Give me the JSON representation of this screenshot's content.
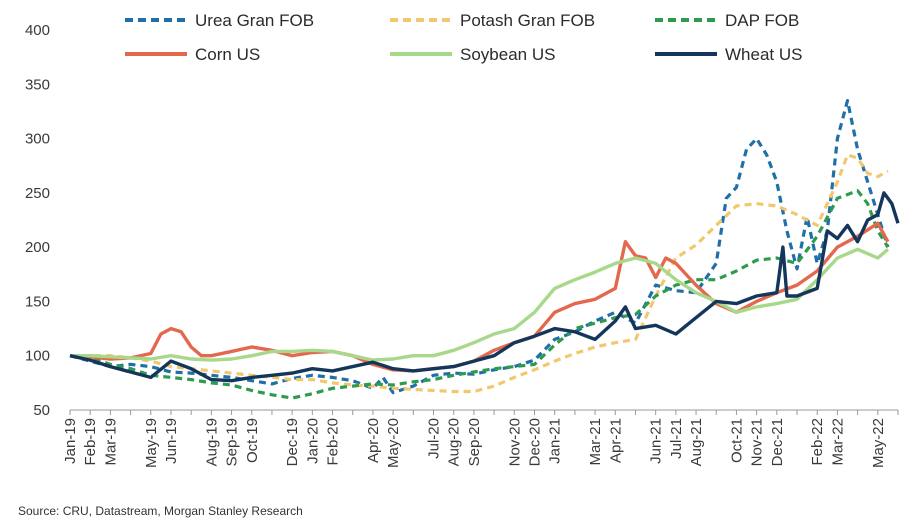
{
  "source_text": "Source: CRU, Datastream, Morgan Stanley Research",
  "chart_data": {
    "type": "line",
    "ylim": [
      50,
      400
    ],
    "yticks": [
      50,
      100,
      150,
      200,
      250,
      300,
      350,
      400
    ],
    "x_start": "2019-01",
    "x_end": "2022-06",
    "tick_labels": [
      "Jan-19",
      "Feb-19",
      "Mar-19",
      "May-19",
      "Jun-19",
      "Aug-19",
      "Sep-19",
      "Oct-19",
      "Dec-19",
      "Jan-20",
      "Feb-20",
      "Apr-20",
      "May-20",
      "Jul-20",
      "Aug-20",
      "Sep-20",
      "Nov-20",
      "Dec-20",
      "Jan-21",
      "Mar-21",
      "Apr-21",
      "Jun-21",
      "Jul-21",
      "Aug-21",
      "Oct-21",
      "Nov-21",
      "Dec-21",
      "Feb-22",
      "Mar-22",
      "May-22"
    ],
    "tick_months": [
      0,
      1,
      2,
      4,
      5,
      7,
      8,
      9,
      11,
      12,
      13,
      15,
      16,
      18,
      19,
      20,
      22,
      23,
      24,
      26,
      27,
      29,
      30,
      31,
      33,
      34,
      35,
      37,
      38,
      40
    ],
    "series": [
      {
        "name": "Urea Gran FOB",
        "color": "#1f6fa8",
        "style": "dash",
        "points": [
          [
            0,
            100
          ],
          [
            1,
            95
          ],
          [
            2,
            90
          ],
          [
            3,
            92
          ],
          [
            4,
            90
          ],
          [
            5,
            85
          ],
          [
            6,
            84
          ],
          [
            7,
            82
          ],
          [
            8,
            80
          ],
          [
            9,
            77
          ],
          [
            10,
            74
          ],
          [
            11,
            79
          ],
          [
            12,
            82
          ],
          [
            13,
            80
          ],
          [
            14,
            77
          ],
          [
            15,
            70
          ],
          [
            15.5,
            80
          ],
          [
            16,
            66
          ],
          [
            17,
            72
          ],
          [
            18,
            82
          ],
          [
            19,
            84
          ],
          [
            20,
            83
          ],
          [
            21,
            87
          ],
          [
            22,
            90
          ],
          [
            23,
            96
          ],
          [
            24,
            115
          ],
          [
            25,
            122
          ],
          [
            26,
            132
          ],
          [
            27,
            140
          ],
          [
            28,
            130
          ],
          [
            29,
            165
          ],
          [
            30,
            160
          ],
          [
            31,
            158
          ],
          [
            32,
            185
          ],
          [
            32.5,
            245
          ],
          [
            33,
            255
          ],
          [
            33.5,
            290
          ],
          [
            34,
            300
          ],
          [
            34.5,
            285
          ],
          [
            35,
            260
          ],
          [
            35.5,
            215
          ],
          [
            36,
            180
          ],
          [
            36.5,
            228
          ],
          [
            37,
            185
          ],
          [
            37.5,
            215
          ],
          [
            38,
            300
          ],
          [
            38.5,
            335
          ],
          [
            39,
            290
          ],
          [
            39.5,
            260
          ],
          [
            40,
            230
          ],
          [
            40.5,
            200
          ]
        ]
      },
      {
        "name": "Potash Gran FOB",
        "color": "#f2c86e",
        "style": "dash",
        "points": [
          [
            0,
            100
          ],
          [
            1,
            100
          ],
          [
            2,
            100
          ],
          [
            3,
            98
          ],
          [
            4,
            95
          ],
          [
            5,
            90
          ],
          [
            6,
            88
          ],
          [
            7,
            86
          ],
          [
            8,
            84
          ],
          [
            9,
            82
          ],
          [
            10,
            80
          ],
          [
            11,
            78
          ],
          [
            12,
            78
          ],
          [
            13,
            75
          ],
          [
            14,
            73
          ],
          [
            15,
            72
          ],
          [
            16,
            70
          ],
          [
            17,
            69
          ],
          [
            18,
            68
          ],
          [
            19,
            67
          ],
          [
            20,
            67
          ],
          [
            21,
            72
          ],
          [
            22,
            80
          ],
          [
            23,
            87
          ],
          [
            24,
            95
          ],
          [
            25,
            102
          ],
          [
            26,
            108
          ],
          [
            27,
            112
          ],
          [
            28,
            115
          ],
          [
            29,
            155
          ],
          [
            30,
            190
          ],
          [
            31,
            202
          ],
          [
            32,
            220
          ],
          [
            33,
            238
          ],
          [
            34,
            240
          ],
          [
            35,
            238
          ],
          [
            36,
            230
          ],
          [
            37,
            220
          ],
          [
            38,
            260
          ],
          [
            38.5,
            285
          ],
          [
            39,
            282
          ],
          [
            39.5,
            268
          ],
          [
            40,
            265
          ],
          [
            40.5,
            270
          ]
        ]
      },
      {
        "name": "DAP FOB",
        "color": "#2e9a4e",
        "style": "dash",
        "points": [
          [
            0,
            100
          ],
          [
            1,
            98
          ],
          [
            2,
            92
          ],
          [
            3,
            88
          ],
          [
            4,
            82
          ],
          [
            5,
            80
          ],
          [
            6,
            78
          ],
          [
            7,
            75
          ],
          [
            8,
            73
          ],
          [
            9,
            68
          ],
          [
            10,
            64
          ],
          [
            11,
            61
          ],
          [
            12,
            65
          ],
          [
            13,
            70
          ],
          [
            14,
            72
          ],
          [
            15,
            74
          ],
          [
            16,
            73
          ],
          [
            17,
            76
          ],
          [
            18,
            78
          ],
          [
            19,
            82
          ],
          [
            20,
            85
          ],
          [
            21,
            88
          ],
          [
            22,
            90
          ],
          [
            23,
            92
          ],
          [
            24,
            110
          ],
          [
            25,
            125
          ],
          [
            26,
            130
          ],
          [
            27,
            135
          ],
          [
            28,
            138
          ],
          [
            29,
            155
          ],
          [
            30,
            165
          ],
          [
            31,
            170
          ],
          [
            32,
            170
          ],
          [
            33,
            178
          ],
          [
            34,
            188
          ],
          [
            35,
            190
          ],
          [
            36,
            185
          ],
          [
            37,
            210
          ],
          [
            38,
            245
          ],
          [
            39,
            252
          ],
          [
            39.5,
            240
          ],
          [
            40,
            215
          ],
          [
            40.5,
            200
          ]
        ]
      },
      {
        "name": "Corn US",
        "color": "#e4684e",
        "style": "solid",
        "points": [
          [
            0,
            100
          ],
          [
            1,
            99
          ],
          [
            2,
            97
          ],
          [
            3,
            98
          ],
          [
            4,
            102
          ],
          [
            4.5,
            120
          ],
          [
            5,
            125
          ],
          [
            5.5,
            122
          ],
          [
            6,
            108
          ],
          [
            6.5,
            100
          ],
          [
            7,
            100
          ],
          [
            8,
            104
          ],
          [
            9,
            108
          ],
          [
            10,
            105
          ],
          [
            11,
            100
          ],
          [
            12,
            103
          ],
          [
            13,
            104
          ],
          [
            14,
            100
          ],
          [
            15,
            92
          ],
          [
            16,
            87
          ],
          [
            17,
            86
          ],
          [
            18,
            88
          ],
          [
            19,
            90
          ],
          [
            20,
            95
          ],
          [
            21,
            105
          ],
          [
            22,
            112
          ],
          [
            23,
            118
          ],
          [
            24,
            140
          ],
          [
            25,
            148
          ],
          [
            26,
            152
          ],
          [
            27,
            162
          ],
          [
            27.5,
            205
          ],
          [
            28,
            192
          ],
          [
            28.5,
            190
          ],
          [
            29,
            172
          ],
          [
            29.5,
            190
          ],
          [
            30,
            185
          ],
          [
            31,
            165
          ],
          [
            32,
            148
          ],
          [
            33,
            140
          ],
          [
            34,
            150
          ],
          [
            35,
            158
          ],
          [
            36,
            165
          ],
          [
            37,
            178
          ],
          [
            38,
            200
          ],
          [
            39,
            210
          ],
          [
            40,
            222
          ],
          [
            40.5,
            205
          ]
        ]
      },
      {
        "name": "Soybean US",
        "color": "#a8d88a",
        "style": "solid",
        "points": [
          [
            0,
            100
          ],
          [
            1,
            100
          ],
          [
            2,
            99
          ],
          [
            3,
            98
          ],
          [
            4,
            97
          ],
          [
            5,
            100
          ],
          [
            6,
            97
          ],
          [
            7,
            96
          ],
          [
            8,
            97
          ],
          [
            9,
            100
          ],
          [
            10,
            104
          ],
          [
            11,
            104
          ],
          [
            12,
            105
          ],
          [
            13,
            104
          ],
          [
            14,
            100
          ],
          [
            15,
            96
          ],
          [
            16,
            97
          ],
          [
            17,
            100
          ],
          [
            18,
            100
          ],
          [
            19,
            105
          ],
          [
            20,
            112
          ],
          [
            21,
            120
          ],
          [
            22,
            125
          ],
          [
            23,
            140
          ],
          [
            24,
            162
          ],
          [
            25,
            170
          ],
          [
            26,
            177
          ],
          [
            27,
            185
          ],
          [
            28,
            190
          ],
          [
            29,
            185
          ],
          [
            30,
            170
          ],
          [
            31,
            158
          ],
          [
            32,
            150
          ],
          [
            33,
            140
          ],
          [
            34,
            145
          ],
          [
            35,
            148
          ],
          [
            36,
            152
          ],
          [
            37,
            170
          ],
          [
            38,
            190
          ],
          [
            39,
            198
          ],
          [
            40,
            190
          ],
          [
            40.5,
            198
          ]
        ]
      },
      {
        "name": "Wheat US",
        "color": "#14365a",
        "style": "solid",
        "points": [
          [
            0,
            100
          ],
          [
            1,
            96
          ],
          [
            2,
            90
          ],
          [
            3,
            85
          ],
          [
            4,
            80
          ],
          [
            5,
            95
          ],
          [
            6,
            88
          ],
          [
            7,
            78
          ],
          [
            8,
            77
          ],
          [
            9,
            80
          ],
          [
            10,
            82
          ],
          [
            11,
            84
          ],
          [
            12,
            88
          ],
          [
            13,
            86
          ],
          [
            14,
            90
          ],
          [
            15,
            94
          ],
          [
            16,
            88
          ],
          [
            17,
            86
          ],
          [
            18,
            88
          ],
          [
            19,
            90
          ],
          [
            20,
            95
          ],
          [
            21,
            100
          ],
          [
            22,
            112
          ],
          [
            23,
            118
          ],
          [
            24,
            125
          ],
          [
            25,
            122
          ],
          [
            26,
            115
          ],
          [
            27,
            132
          ],
          [
            27.5,
            145
          ],
          [
            28,
            125
          ],
          [
            29,
            128
          ],
          [
            30,
            120
          ],
          [
            31,
            135
          ],
          [
            32,
            150
          ],
          [
            33,
            148
          ],
          [
            34,
            155
          ],
          [
            35,
            158
          ],
          [
            35.3,
            200
          ],
          [
            35.5,
            155
          ],
          [
            36,
            155
          ],
          [
            37,
            162
          ],
          [
            37.5,
            215
          ],
          [
            38,
            208
          ],
          [
            38.5,
            220
          ],
          [
            39,
            205
          ],
          [
            39.5,
            225
          ],
          [
            40,
            230
          ],
          [
            40.3,
            250
          ],
          [
            40.7,
            240
          ],
          [
            41,
            222
          ]
        ]
      }
    ]
  }
}
